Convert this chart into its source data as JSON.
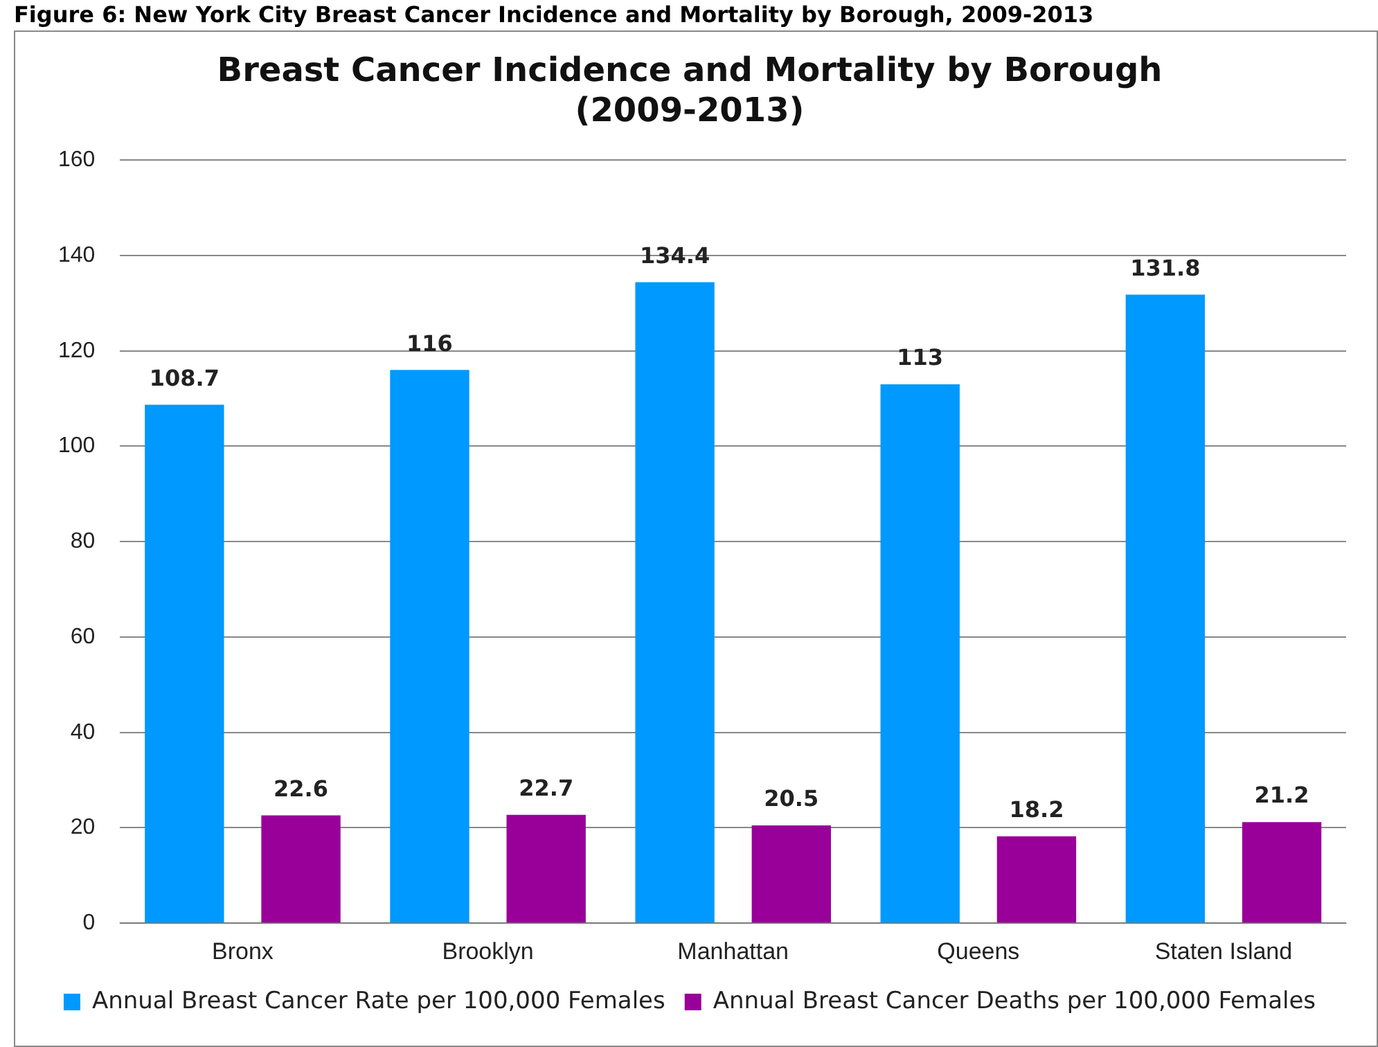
{
  "chart_data": {
    "type": "bar",
    "title": [
      "Breast Cancer Incidence and Mortality by Borough",
      "(2009-2013)"
    ],
    "annotations": [
      "Figure 6: New York City Breast Cancer Incidence and Mortality by Borough, 2009-2013"
    ],
    "categories": [
      "Bronx",
      "Brooklyn",
      "Manhattan",
      "Queens",
      "Staten Island"
    ],
    "series": [
      {
        "name": "Annual Breast Cancer Rate per 100,000 Females",
        "color": "#0099ff",
        "values": [
          108.7,
          116,
          134.4,
          113,
          131.8
        ]
      },
      {
        "name": "Annual Breast Cancer Deaths per 100,000 Females",
        "color": "#990099",
        "values": [
          22.6,
          22.7,
          20.5,
          18.2,
          21.2
        ]
      }
    ],
    "ylim": [
      0,
      160
    ],
    "yticks": [
      0,
      20,
      40,
      60,
      80,
      100,
      120,
      140,
      160
    ],
    "grid": "y",
    "legend": "bottom",
    "data_labels": true
  }
}
